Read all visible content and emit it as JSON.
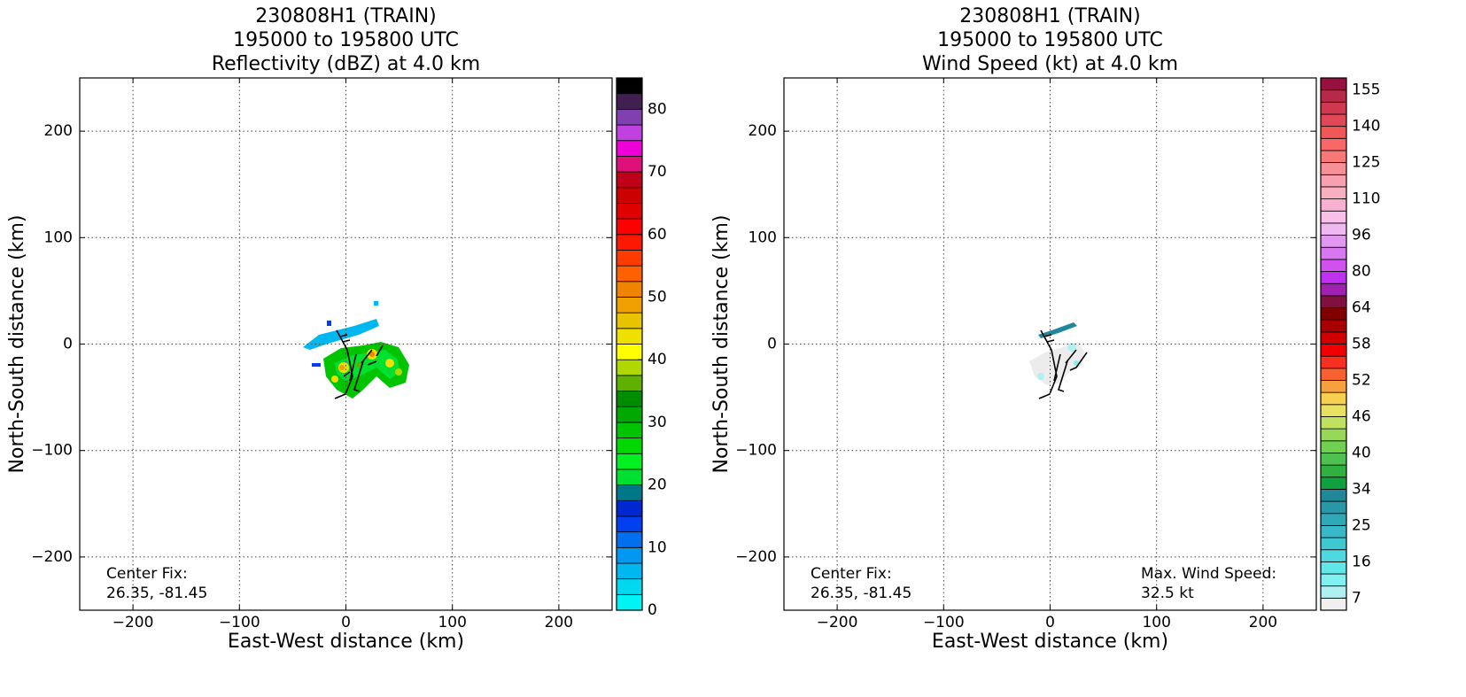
{
  "chart_data": [
    {
      "type": "radar-map",
      "title_lines": [
        "230808H1 (TRAIN)",
        "195000 to 195800 UTC",
        "Reflectivity (dBZ) at 4.0 km"
      ],
      "xlabel": "East-West distance (km)",
      "ylabel": "North-South distance (km)",
      "xlim": [
        -250,
        250
      ],
      "ylim": [
        -250,
        250
      ],
      "xticks": [
        {
          "value": -200,
          "label": "−200"
        },
        {
          "value": -100,
          "label": "−100"
        },
        0,
        100,
        200
      ],
      "yticks": [
        {
          "value": -200,
          "label": "−200"
        },
        {
          "value": -100,
          "label": "−100"
        },
        0,
        100,
        200
      ],
      "grid": true,
      "annotations": [
        [
          "Center Fix:",
          "26.35, -81.45"
        ]
      ],
      "colorbar": {
        "bounds": [
          0,
          2.5,
          5,
          7.5,
          10,
          12.5,
          15,
          17.5,
          20,
          22.5,
          25,
          27.5,
          30,
          32.5,
          35,
          37.5,
          40,
          42.5,
          45,
          47.5,
          50,
          52.5,
          55,
          57.5,
          60,
          62.5,
          65,
          67.5,
          70,
          72.5,
          75,
          77.5,
          80
        ],
        "colors": [
          "#00f4f4",
          "#00d8f0",
          "#00b8f0",
          "#0098f0",
          "#0070f0",
          "#0040f0",
          "#0028d0",
          "#007888",
          "#00e030",
          "#00f020",
          "#00d800",
          "#00c400",
          "#00a800",
          "#008c00",
          "#60b000",
          "#b0d800",
          "#ffff00",
          "#f0e000",
          "#e8c400",
          "#f0a000",
          "#f08400",
          "#ff6000",
          "#ff3c00",
          "#ff1800",
          "#ff0000",
          "#e00000",
          "#cc0000",
          "#c00018",
          "#e0107a",
          "#f000d8",
          "#c040e0",
          "#8040b0",
          "#402050",
          "#000000"
        ],
        "ticks": [
          0,
          10,
          20,
          30,
          40,
          50,
          60,
          70,
          80
        ]
      }
    },
    {
      "type": "radar-map",
      "title_lines": [
        "230808H1 (TRAIN)",
        "195000 to 195800 UTC",
        "Wind Speed (kt) at 4.0 km"
      ],
      "xlabel": "East-West distance (km)",
      "ylabel": "North-South distance (km)",
      "xlim": [
        -250,
        250
      ],
      "ylim": [
        -250,
        250
      ],
      "xticks": [
        {
          "value": -200,
          "label": "−200"
        },
        {
          "value": -100,
          "label": "−100"
        },
        0,
        100,
        200
      ],
      "yticks": [
        {
          "value": -200,
          "label": "−200"
        },
        {
          "value": -100,
          "label": "−100"
        },
        0,
        100,
        200
      ],
      "grid": true,
      "annotations": [
        [
          "Center Fix:",
          "26.35, -81.45"
        ],
        [
          "Max. Wind Speed:",
          "32.5 kt"
        ]
      ],
      "colorbar": {
        "bounds": [
          4,
          7,
          10,
          13,
          16,
          19,
          22,
          25,
          28,
          31,
          34,
          36,
          38,
          40,
          42,
          44,
          46,
          48,
          50,
          52,
          54,
          56,
          58,
          60,
          62,
          64,
          70,
          75,
          80,
          86,
          91,
          96,
          101,
          105,
          110,
          115,
          120,
          125,
          130,
          135,
          140,
          145,
          150,
          155,
          160
        ],
        "colors": [
          "#f0f0f0",
          "#b0f0f0",
          "#80f0f0",
          "#60e8e8",
          "#50d8e0",
          "#40c8d0",
          "#38b8c8",
          "#30a8b8",
          "#2898a8",
          "#208898",
          "#10a040",
          "#30b040",
          "#50c050",
          "#70d050",
          "#98d858",
          "#c0e060",
          "#e8e060",
          "#f8d050",
          "#f8a040",
          "#f86030",
          "#f83020",
          "#f00000",
          "#d00000",
          "#a80000",
          "#800000",
          "#801040",
          "#a020b0",
          "#c030f0",
          "#d050f0",
          "#d878f0",
          "#e098f0",
          "#f0b8f0",
          "#f8c0e8",
          "#f8b0d0",
          "#f8b0c0",
          "#f8a0b0",
          "#f89098",
          "#f87878",
          "#f86868",
          "#f05858",
          "#e04858",
          "#d03850",
          "#b82848",
          "#981040"
        ],
        "ticks": [
          7,
          16,
          25,
          34,
          40,
          46,
          52,
          58,
          64,
          80,
          96,
          110,
          125,
          140,
          155
        ]
      }
    }
  ]
}
